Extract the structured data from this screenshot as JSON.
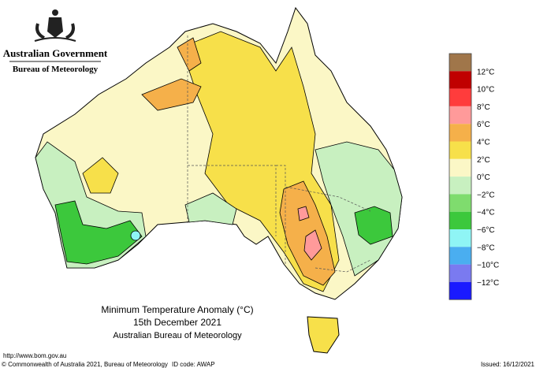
{
  "header": {
    "government": "Australian Government",
    "agency": "Bureau of Meteorology"
  },
  "title": {
    "line1": "Minimum Temperature Anomaly (°C)",
    "line2": "15th December 2021",
    "line3": "Australian Bureau of Meteorology"
  },
  "legend": {
    "colors": [
      "#a0764a",
      "#c00000",
      "#ff3c3c",
      "#ff9a9a",
      "#f5b04a",
      "#f7e04a",
      "#fbf7c6",
      "#c8f0c0",
      "#7fdc6e",
      "#3cc83c",
      "#8ff5f5",
      "#4aaef0",
      "#7a7af0",
      "#1a1aff"
    ],
    "labels": [
      "12°C",
      "10°C",
      "8°C",
      "6°C",
      "4°C",
      "2°C",
      "0°C",
      "−2°C",
      "−4°C",
      "−6°C",
      "−8°C",
      "−10°C",
      "−12°C"
    ]
  },
  "footer": {
    "url": "http://www.bom.gov.au",
    "copyright": "© Commonwealth of Australia 2021, Bureau of Meteorology",
    "id_code": "ID code: AWAP",
    "issued": "Issued: 16/12/2021"
  }
}
